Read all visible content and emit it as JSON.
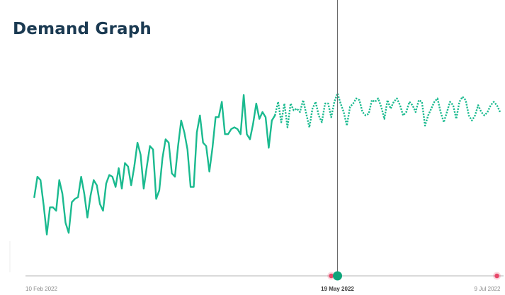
{
  "page": {
    "title": "Demand Graph"
  },
  "colors": {
    "series": "#1aba8f",
    "today_marker": "#0ea47a",
    "event_marker": "#e8486a",
    "axis": "#b4b4b4",
    "cursor_line": "#6a6a6a",
    "title": "#1b3a52"
  },
  "chart_data": {
    "type": "line",
    "title": "Demand Graph",
    "xlabel": "",
    "ylabel": "",
    "x_range": [
      "2022-02-10",
      "2022-07-10"
    ],
    "ylim": [
      0,
      100
    ],
    "grid": false,
    "legend": "none",
    "x_ticks": [
      {
        "date": "2022-02-10",
        "label": "10 Feb 2022",
        "bold": false
      },
      {
        "date": "2022-05-19",
        "label": "19 May 2022",
        "bold": true
      },
      {
        "date": "2022-07-09",
        "label": "9 Jul 2022",
        "bold": false
      }
    ],
    "cursor_date": "2022-05-19",
    "markers": [
      {
        "date": "2022-05-17",
        "kind": "event"
      },
      {
        "date": "2022-05-19",
        "kind": "today"
      },
      {
        "date": "2022-07-09",
        "kind": "event"
      }
    ],
    "series": [
      {
        "style": "solid",
        "points": [
          [
            "2022-02-11",
            30
          ],
          [
            "2022-02-12",
            42
          ],
          [
            "2022-02-13",
            40
          ],
          [
            "2022-02-14",
            25
          ],
          [
            "2022-02-15",
            8
          ],
          [
            "2022-02-16",
            24
          ],
          [
            "2022-02-17",
            24
          ],
          [
            "2022-02-18",
            22
          ],
          [
            "2022-02-19",
            40
          ],
          [
            "2022-02-20",
            32
          ],
          [
            "2022-02-21",
            15
          ],
          [
            "2022-02-22",
            9
          ],
          [
            "2022-02-23",
            27
          ],
          [
            "2022-02-24",
            29
          ],
          [
            "2022-02-25",
            30
          ],
          [
            "2022-02-26",
            42
          ],
          [
            "2022-02-27",
            32
          ],
          [
            "2022-02-28",
            18
          ],
          [
            "2022-03-01",
            31
          ],
          [
            "2022-03-02",
            40
          ],
          [
            "2022-03-03",
            37
          ],
          [
            "2022-03-04",
            26
          ],
          [
            "2022-03-05",
            22
          ],
          [
            "2022-03-06",
            38
          ],
          [
            "2022-03-07",
            43
          ],
          [
            "2022-03-08",
            42
          ],
          [
            "2022-03-09",
            36
          ],
          [
            "2022-03-10",
            47
          ],
          [
            "2022-03-11",
            35
          ],
          [
            "2022-03-12",
            50
          ],
          [
            "2022-03-13",
            48
          ],
          [
            "2022-03-14",
            37
          ],
          [
            "2022-03-15",
            48
          ],
          [
            "2022-03-16",
            62
          ],
          [
            "2022-03-17",
            55
          ],
          [
            "2022-03-18",
            35
          ],
          [
            "2022-03-19",
            48
          ],
          [
            "2022-03-20",
            60
          ],
          [
            "2022-03-21",
            58
          ],
          [
            "2022-03-22",
            29
          ],
          [
            "2022-03-23",
            34
          ],
          [
            "2022-03-24",
            53
          ],
          [
            "2022-03-25",
            64
          ],
          [
            "2022-03-26",
            62
          ],
          [
            "2022-03-27",
            44
          ],
          [
            "2022-03-28",
            42
          ],
          [
            "2022-03-29",
            60
          ],
          [
            "2022-03-30",
            75
          ],
          [
            "2022-03-31",
            68
          ],
          [
            "2022-04-01",
            58
          ],
          [
            "2022-04-02",
            36
          ],
          [
            "2022-04-03",
            36
          ],
          [
            "2022-04-04",
            68
          ],
          [
            "2022-04-05",
            78
          ],
          [
            "2022-04-06",
            62
          ],
          [
            "2022-04-07",
            60
          ],
          [
            "2022-04-08",
            45
          ],
          [
            "2022-04-09",
            59
          ],
          [
            "2022-04-10",
            77
          ],
          [
            "2022-04-11",
            77
          ],
          [
            "2022-04-12",
            86
          ],
          [
            "2022-04-13",
            67
          ],
          [
            "2022-04-14",
            67
          ],
          [
            "2022-04-15",
            70
          ],
          [
            "2022-04-16",
            71
          ],
          [
            "2022-04-17",
            70
          ],
          [
            "2022-04-18",
            67
          ],
          [
            "2022-04-19",
            90
          ],
          [
            "2022-04-20",
            67
          ],
          [
            "2022-04-21",
            64
          ],
          [
            "2022-04-22",
            73
          ],
          [
            "2022-04-23",
            85
          ],
          [
            "2022-04-24",
            76
          ],
          [
            "2022-04-25",
            80
          ],
          [
            "2022-04-26",
            77
          ],
          [
            "2022-04-27",
            59
          ],
          [
            "2022-04-28",
            75
          ],
          [
            "2022-04-29",
            78
          ]
        ]
      },
      {
        "style": "dotted",
        "points": [
          [
            "2022-04-29",
            78
          ],
          [
            "2022-04-30",
            86
          ],
          [
            "2022-05-01",
            74
          ],
          [
            "2022-05-02",
            85
          ],
          [
            "2022-05-03",
            71
          ],
          [
            "2022-05-04",
            85
          ],
          [
            "2022-05-05",
            81
          ],
          [
            "2022-05-06",
            82
          ],
          [
            "2022-05-07",
            80
          ],
          [
            "2022-05-08",
            87
          ],
          [
            "2022-05-09",
            79
          ],
          [
            "2022-05-10",
            71
          ],
          [
            "2022-05-11",
            82
          ],
          [
            "2022-05-12",
            86
          ],
          [
            "2022-05-13",
            78
          ],
          [
            "2022-05-14",
            74
          ],
          [
            "2022-05-15",
            85
          ],
          [
            "2022-05-16",
            85
          ],
          [
            "2022-05-17",
            77
          ],
          [
            "2022-05-18",
            86
          ],
          [
            "2022-05-19",
            91
          ],
          [
            "2022-05-20",
            85
          ],
          [
            "2022-05-21",
            80
          ],
          [
            "2022-05-22",
            72
          ],
          [
            "2022-05-23",
            83
          ],
          [
            "2022-05-24",
            85
          ],
          [
            "2022-05-25",
            88
          ],
          [
            "2022-05-26",
            87
          ],
          [
            "2022-05-27",
            80
          ],
          [
            "2022-05-28",
            78
          ],
          [
            "2022-05-29",
            79
          ],
          [
            "2022-05-30",
            87
          ],
          [
            "2022-05-31",
            86
          ],
          [
            "2022-06-01",
            88
          ],
          [
            "2022-06-02",
            83
          ],
          [
            "2022-06-03",
            76
          ],
          [
            "2022-06-04",
            87
          ],
          [
            "2022-06-05",
            82
          ],
          [
            "2022-06-06",
            86
          ],
          [
            "2022-06-07",
            88
          ],
          [
            "2022-06-08",
            84
          ],
          [
            "2022-06-09",
            78
          ],
          [
            "2022-06-10",
            80
          ],
          [
            "2022-06-11",
            86
          ],
          [
            "2022-06-12",
            84
          ],
          [
            "2022-06-13",
            80
          ],
          [
            "2022-06-14",
            87
          ],
          [
            "2022-06-15",
            86
          ],
          [
            "2022-06-16",
            72
          ],
          [
            "2022-06-17",
            78
          ],
          [
            "2022-06-18",
            82
          ],
          [
            "2022-06-19",
            86
          ],
          [
            "2022-06-20",
            88
          ],
          [
            "2022-06-21",
            80
          ],
          [
            "2022-06-22",
            74
          ],
          [
            "2022-06-23",
            80
          ],
          [
            "2022-06-24",
            86
          ],
          [
            "2022-06-25",
            84
          ],
          [
            "2022-06-26",
            76
          ],
          [
            "2022-06-27",
            86
          ],
          [
            "2022-06-28",
            89
          ],
          [
            "2022-06-29",
            87
          ],
          [
            "2022-06-30",
            78
          ],
          [
            "2022-07-01",
            75
          ],
          [
            "2022-07-02",
            78
          ],
          [
            "2022-07-03",
            84
          ],
          [
            "2022-07-04",
            80
          ],
          [
            "2022-07-05",
            78
          ],
          [
            "2022-07-06",
            80
          ],
          [
            "2022-07-07",
            84
          ],
          [
            "2022-07-08",
            86
          ],
          [
            "2022-07-09",
            84
          ],
          [
            "2022-07-10",
            80
          ]
        ]
      }
    ]
  }
}
